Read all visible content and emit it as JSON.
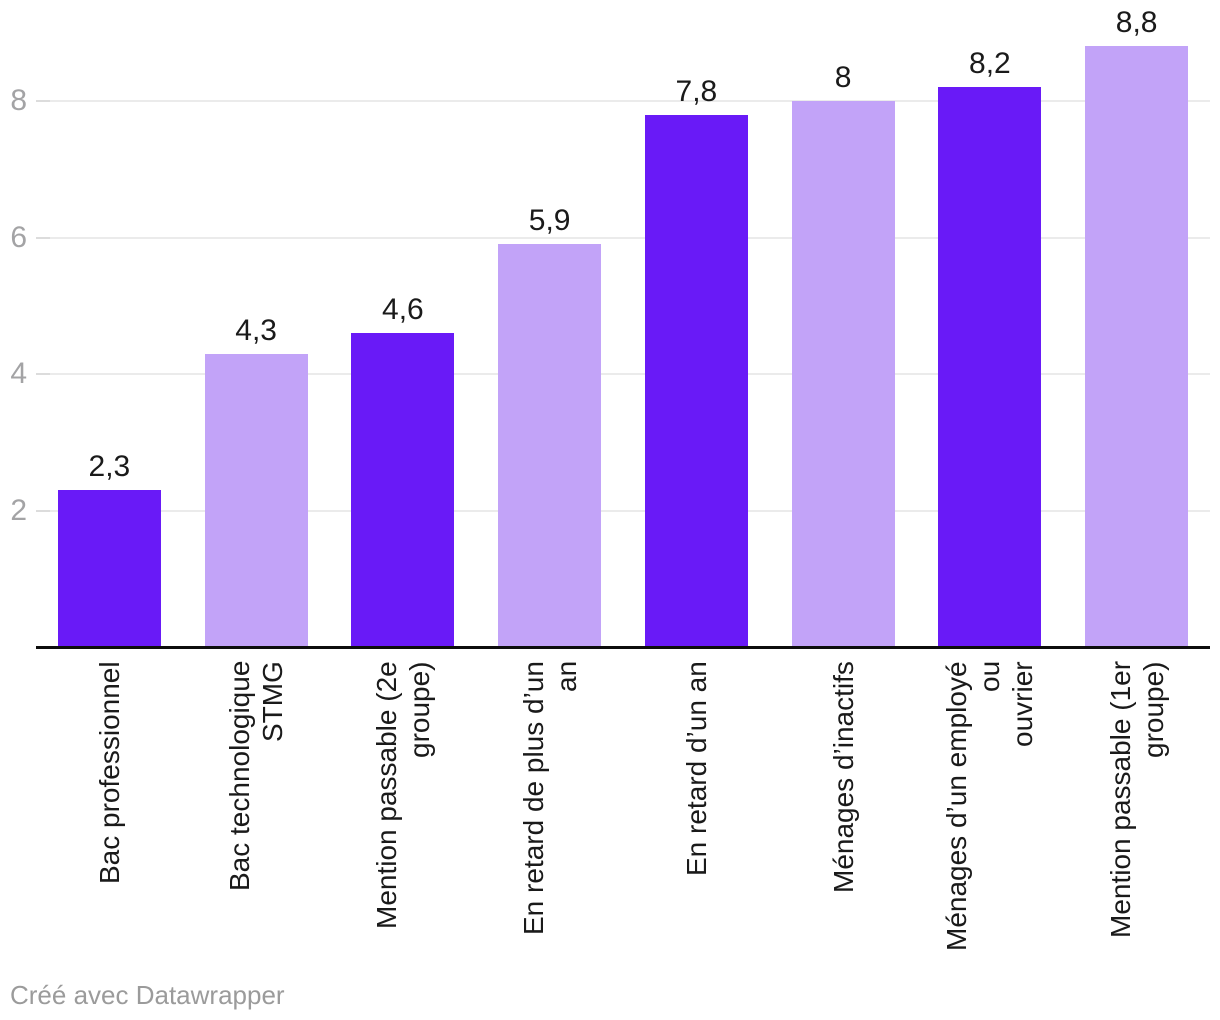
{
  "chart_data": {
    "type": "bar",
    "title": "",
    "categories": [
      "Bac professionnel",
      "Bac technologique STMG",
      "Mention passable (2e groupe)",
      "En retard de plus d’un an",
      "En retard d’un an",
      "Ménages d’inactifs",
      "Ménages d’un employé ou ouvrier",
      "Mention passable (1er groupe)"
    ],
    "category_lines": [
      [
        "Bac professionnel"
      ],
      [
        "Bac technologique STMG"
      ],
      [
        "Mention passable (2e",
        "groupe)"
      ],
      [
        "En retard de plus d’un an"
      ],
      [
        "En retard d’un an"
      ],
      [
        "Ménages d’inactifs"
      ],
      [
        "Ménages d’un employé ou",
        "ouvrier"
      ],
      [
        "Mention passable (1er",
        "groupe)"
      ]
    ],
    "values": [
      2.3,
      4.3,
      4.6,
      5.9,
      7.8,
      8,
      8.2,
      8.8
    ],
    "value_labels": [
      "2,3",
      "4,3",
      "4,6",
      "5,9",
      "7,8",
      "8",
      "8,2",
      "8,8"
    ],
    "bar_colors": [
      "#691af7",
      "#c2a3f8",
      "#691af7",
      "#c2a3f8",
      "#691af7",
      "#c2a3f8",
      "#691af7",
      "#c2a3f8"
    ],
    "yticks": [
      2,
      4,
      6,
      8
    ],
    "ytick_labels": [
      "2",
      "4",
      "6",
      "8"
    ],
    "ylim": [
      0,
      9
    ],
    "grid": true,
    "legend": "none",
    "xlabel": "",
    "ylabel": "",
    "decimal_separator": ","
  },
  "colors": {
    "bar_dark": "#691af7",
    "bar_light": "#c2a3f8",
    "grid": "#ebebeb",
    "tick_stub": "#dcdcdc",
    "tick_text": "#a3a3a5",
    "axis_line": "#0d0d0d",
    "value_text": "#1a1a1a",
    "category_text": "#1a1a1a",
    "credit_text": "#9b9b9b"
  },
  "footer": {
    "credit": "Créé avec Datawrapper"
  }
}
